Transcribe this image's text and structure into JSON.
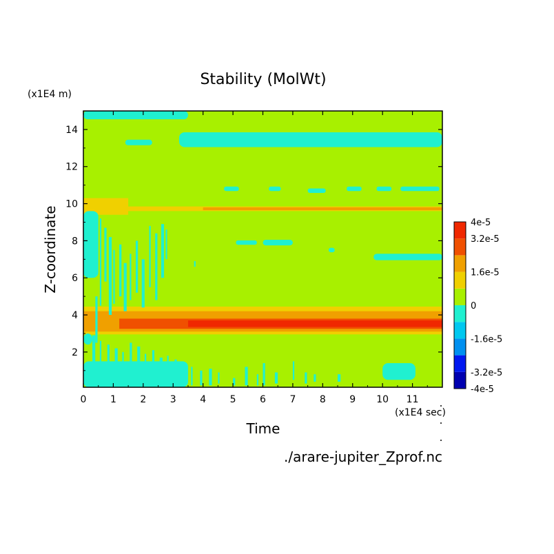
{
  "chart_data": {
    "type": "heatmap",
    "title": "Stability (MolWt)",
    "xlabel": "Time",
    "ylabel": "Z-coordinate",
    "x_unit": "(x1E4 sec)",
    "y_unit": "(x1E4 m)",
    "xlim": [
      0,
      12
    ],
    "ylim": [
      0.1,
      15
    ],
    "x_ticks": [
      0,
      1,
      2,
      3,
      4,
      5,
      6,
      7,
      8,
      9,
      10,
      11
    ],
    "y_ticks": [
      2,
      4,
      6,
      8,
      10,
      12,
      14
    ],
    "colorbar": {
      "labels": [
        "4e-5",
        "3.2e-5",
        "1.6e-5",
        "0",
        "-1.6e-5",
        "-3.2e-5",
        "-4e-5"
      ],
      "label_values": [
        4e-05,
        3.2e-05,
        1.6e-05,
        0,
        -1.6e-05,
        -3.2e-05,
        -4e-05
      ],
      "levels": [
        -4e-05,
        -3.2e-05,
        -2.4e-05,
        -1.6e-05,
        -8e-06,
        0,
        8e-06,
        1.6e-05,
        2.4e-05,
        3.2e-05,
        4e-05
      ],
      "colors": [
        "#0000b0",
        "#0018f0",
        "#0090f0",
        "#00c8f0",
        "#20f0d0",
        "#a8f000",
        "#f0d000",
        "#f0a000",
        "#f05000",
        "#f02800",
        "#f04050"
      ]
    },
    "background_value": 4e-06,
    "regions": [
      {
        "shape": "band",
        "x": [
          0,
          12
        ],
        "y": [
          2.95,
          4.45
        ],
        "value": 1.2e-05
      },
      {
        "shape": "band",
        "x": [
          0,
          12
        ],
        "y": [
          3.1,
          4.2
        ],
        "value": 2e-05
      },
      {
        "shape": "band",
        "x": [
          1.2,
          12
        ],
        "y": [
          3.25,
          3.8
        ],
        "value": 2.8e-05
      },
      {
        "shape": "band",
        "x": [
          3.5,
          12
        ],
        "y": [
          3.35,
          3.7
        ],
        "value": 3.4e-05
      },
      {
        "shape": "band",
        "x": [
          0,
          12
        ],
        "y": [
          9.6,
          9.85
        ],
        "value": 1.2e-05
      },
      {
        "shape": "band",
        "x": [
          0,
          1.5
        ],
        "y": [
          9.4,
          10.3
        ],
        "value": 1.2e-05
      },
      {
        "shape": "band",
        "x": [
          4,
          12
        ],
        "y": [
          9.65,
          9.8
        ],
        "value": 2e-05
      },
      {
        "shape": "blob",
        "x": [
          3.2,
          12
        ],
        "y": [
          13.05,
          13.85
        ],
        "value": -4e-06
      },
      {
        "shape": "blob",
        "x": [
          1.4,
          2.3
        ],
        "y": [
          13.15,
          13.45
        ],
        "value": -4e-06
      },
      {
        "shape": "blob",
        "x": [
          0,
          3.5
        ],
        "y": [
          14.55,
          15
        ],
        "value": -4e-06
      },
      {
        "shape": "blob",
        "x": [
          10,
          11.1
        ],
        "y": [
          0.5,
          1.4
        ],
        "value": -4e-06
      },
      {
        "shape": "blob",
        "x": [
          6,
          7
        ],
        "y": [
          7.75,
          8.05
        ],
        "value": -4e-06
      },
      {
        "shape": "blob",
        "x": [
          9.7,
          12
        ],
        "y": [
          6.95,
          7.3
        ],
        "value": -4e-06
      },
      {
        "shape": "blob",
        "x": [
          0,
          0.5
        ],
        "y": [
          6,
          9.6
        ],
        "value": -4e-06
      },
      {
        "shape": "blob",
        "x": [
          0,
          3.5
        ],
        "y": [
          0.1,
          1.5
        ],
        "value": -4e-06
      },
      {
        "shape": "blob",
        "x": [
          0,
          0.3
        ],
        "y": [
          2.4,
          3
        ],
        "value": -4e-06
      }
    ],
    "grid": false,
    "legend": "right"
  },
  "source_file": "./arare-jupiter_Zprof.nc"
}
